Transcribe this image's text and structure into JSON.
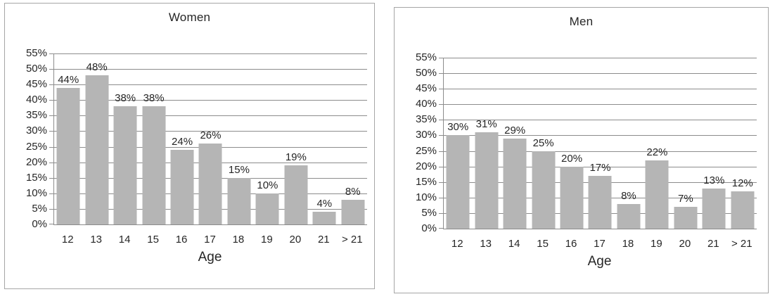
{
  "colors": {
    "bar": "#b5b5b5",
    "gridline": "#8c8c8c",
    "axis": "#8c8c8c",
    "text": "#262626",
    "panel_border": "#a6a6a6",
    "background": "#ffffff"
  },
  "chart_data": [
    {
      "type": "bar",
      "title": "Women",
      "xlabel": "Age",
      "ylabel": "",
      "categories": [
        "12",
        "13",
        "14",
        "15",
        "16",
        "17",
        "18",
        "19",
        "20",
        "21",
        "> 21"
      ],
      "values": [
        44,
        48,
        38,
        38,
        24,
        26,
        15,
        10,
        19,
        4,
        8
      ],
      "data_labels": [
        "44%",
        "48%",
        "38%",
        "38%",
        "24%",
        "26%",
        "15%",
        "10%",
        "19%",
        "4%",
        "8%"
      ],
      "ylim": [
        0,
        55
      ],
      "ytick_step": 5,
      "y_ticks": [
        {
          "value": 55,
          "label": "55%"
        },
        {
          "value": 50,
          "label": "50%"
        },
        {
          "value": 45,
          "label": "45%"
        },
        {
          "value": 40,
          "label": "40%"
        },
        {
          "value": 35,
          "label": "35%"
        },
        {
          "value": 30,
          "label": "30%"
        },
        {
          "value": 25,
          "label": "25%"
        },
        {
          "value": 20,
          "label": "20%"
        },
        {
          "value": 15,
          "label": "15%"
        },
        {
          "value": 10,
          "label": "10%"
        },
        {
          "value": 5,
          "label": "5%"
        },
        {
          "value": 0,
          "label": "0%"
        }
      ],
      "grid": true,
      "legend": false
    },
    {
      "type": "bar",
      "title": "Men",
      "xlabel": "Age",
      "ylabel": "",
      "categories": [
        "12",
        "13",
        "14",
        "15",
        "16",
        "17",
        "18",
        "19",
        "20",
        "21",
        "> 21"
      ],
      "values": [
        30,
        31,
        29,
        25,
        20,
        17,
        8,
        22,
        7,
        13,
        12
      ],
      "data_labels": [
        "30%",
        "31%",
        "29%",
        "25%",
        "20%",
        "17%",
        "8%",
        "22%",
        "7%",
        "13%",
        "12%"
      ],
      "ylim": [
        0,
        55
      ],
      "ytick_step": 5,
      "y_ticks": [
        {
          "value": 55,
          "label": "55%"
        },
        {
          "value": 50,
          "label": "50%"
        },
        {
          "value": 45,
          "label": "45%"
        },
        {
          "value": 40,
          "label": "40%"
        },
        {
          "value": 35,
          "label": "35%"
        },
        {
          "value": 30,
          "label": "30%"
        },
        {
          "value": 25,
          "label": "25%"
        },
        {
          "value": 20,
          "label": "20%"
        },
        {
          "value": 15,
          "label": "15%"
        },
        {
          "value": 10,
          "label": "10%"
        },
        {
          "value": 5,
          "label": "5%"
        },
        {
          "value": 0,
          "label": "0%"
        }
      ],
      "grid": true,
      "legend": false
    }
  ]
}
